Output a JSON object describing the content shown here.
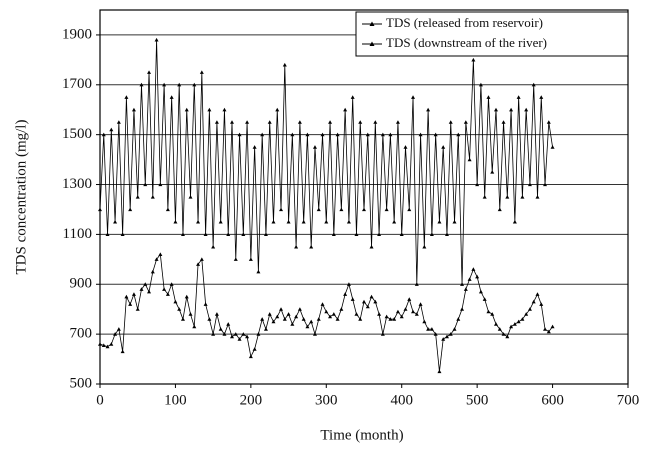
{
  "chart_data": {
    "type": "line",
    "xlabel": "Time (month)",
    "ylabel": "TDS concentration (mg/l)",
    "x": [
      0,
      5,
      10,
      15,
      20,
      25,
      30,
      35,
      40,
      45,
      50,
      55,
      60,
      65,
      70,
      75,
      80,
      85,
      90,
      95,
      100,
      105,
      110,
      115,
      120,
      125,
      130,
      135,
      140,
      145,
      150,
      155,
      160,
      165,
      170,
      175,
      180,
      185,
      190,
      195,
      200,
      205,
      210,
      215,
      220,
      225,
      230,
      235,
      240,
      245,
      250,
      255,
      260,
      265,
      270,
      275,
      280,
      285,
      290,
      295,
      300,
      305,
      310,
      315,
      320,
      325,
      330,
      335,
      340,
      345,
      350,
      355,
      360,
      365,
      370,
      375,
      380,
      385,
      390,
      395,
      400,
      405,
      410,
      415,
      420,
      425,
      430,
      435,
      440,
      445,
      450,
      455,
      460,
      465,
      470,
      475,
      480,
      485,
      490,
      495,
      500,
      505,
      510,
      515,
      520,
      525,
      530,
      535,
      540,
      545,
      550,
      555,
      560,
      565,
      570,
      575,
      580,
      585,
      590,
      595,
      600
    ],
    "series": [
      {
        "name": "TDS (released from reservoir)",
        "color": "#000000",
        "values": [
          660,
          655,
          650,
          660,
          700,
          720,
          630,
          850,
          820,
          860,
          800,
          880,
          900,
          870,
          950,
          1000,
          1020,
          880,
          860,
          900,
          830,
          800,
          760,
          850,
          780,
          730,
          980,
          1000,
          820,
          760,
          700,
          780,
          720,
          700,
          740,
          690,
          700,
          680,
          700,
          690,
          610,
          640,
          700,
          760,
          720,
          780,
          750,
          770,
          800,
          760,
          780,
          740,
          770,
          800,
          760,
          730,
          750,
          700,
          760,
          820,
          790,
          770,
          780,
          760,
          800,
          860,
          900,
          840,
          780,
          760,
          830,
          810,
          850,
          830,
          780,
          700,
          770,
          760,
          760,
          790,
          770,
          800,
          840,
          790,
          780,
          820,
          750,
          720,
          720,
          700,
          550,
          680,
          690,
          700,
          720,
          760,
          800,
          880,
          920,
          960,
          930,
          870,
          840,
          790,
          780,
          740,
          720,
          700,
          690,
          730,
          740,
          750,
          760,
          780,
          800,
          830,
          860,
          820,
          720,
          710,
          730
        ]
      },
      {
        "name": "TDS (downstream of the river)",
        "color": "#000000",
        "values": [
          1200,
          1500,
          1100,
          1520,
          1150,
          1550,
          1100,
          1650,
          1200,
          1600,
          1250,
          1700,
          1300,
          1750,
          1250,
          1880,
          1300,
          1700,
          1200,
          1650,
          1150,
          1700,
          1100,
          1600,
          1250,
          1700,
          1150,
          1750,
          1100,
          1600,
          1050,
          1550,
          1150,
          1600,
          1100,
          1550,
          1000,
          1500,
          1100,
          1550,
          1000,
          1450,
          950,
          1500,
          1100,
          1550,
          1150,
          1600,
          1200,
          1780,
          1150,
          1500,
          1050,
          1550,
          1150,
          1500,
          1050,
          1450,
          1200,
          1500,
          1150,
          1550,
          1100,
          1500,
          1200,
          1600,
          1150,
          1650,
          1100,
          1550,
          1200,
          1500,
          1050,
          1550,
          1100,
          1500,
          1200,
          1500,
          1150,
          1550,
          1100,
          1450,
          1200,
          1650,
          900,
          1500,
          1050,
          1600,
          1100,
          1500,
          1150,
          1450,
          1100,
          1550,
          1150,
          1500,
          900,
          1550,
          1400,
          1800,
          1300,
          1700,
          1250,
          1650,
          1350,
          1600,
          1200,
          1550,
          1250,
          1600,
          1150,
          1650,
          1250,
          1600,
          1300,
          1700,
          1250,
          1650,
          1300,
          1550,
          1450
        ]
      }
    ],
    "xlim": [
      0,
      700
    ],
    "xticks": [
      0,
      100,
      200,
      300,
      400,
      500,
      600,
      700
    ],
    "ylim": [
      500,
      2000
    ],
    "yticks": [
      500,
      700,
      900,
      1100,
      1300,
      1500,
      1700,
      1900
    ],
    "grid": true,
    "legend": "upper right"
  }
}
